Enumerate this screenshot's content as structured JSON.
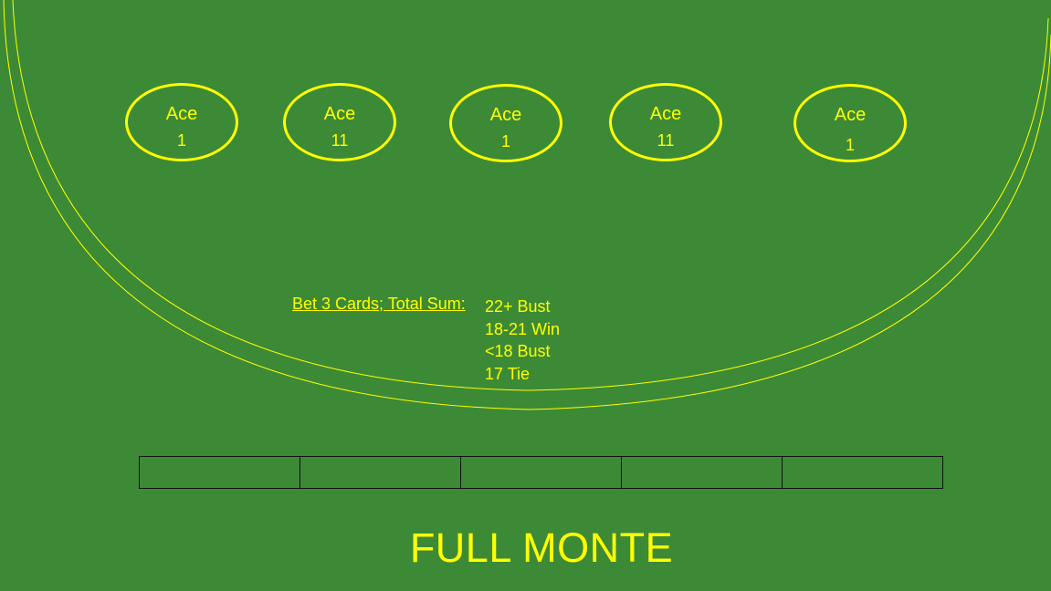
{
  "game": {
    "title": "FULL MONTE"
  },
  "colors": {
    "felt": "#3d8a36",
    "accent": "#ffff00",
    "cell_border": "#111111"
  },
  "cards": [
    {
      "name": "Ace",
      "value": "1"
    },
    {
      "name": "Ace",
      "value": "11"
    },
    {
      "name": "Ace",
      "value": "1"
    },
    {
      "name": "Ace",
      "value": "11"
    },
    {
      "name": "Ace",
      "value": "1"
    }
  ],
  "rules": {
    "label": "Bet 3 Cards; Total Sum:",
    "outcomes": [
      "22+ Bust",
      "18-21 Win",
      "<18 Bust",
      "17 Tie"
    ]
  },
  "bet_cells": [
    "",
    "",
    "",
    "",
    ""
  ]
}
